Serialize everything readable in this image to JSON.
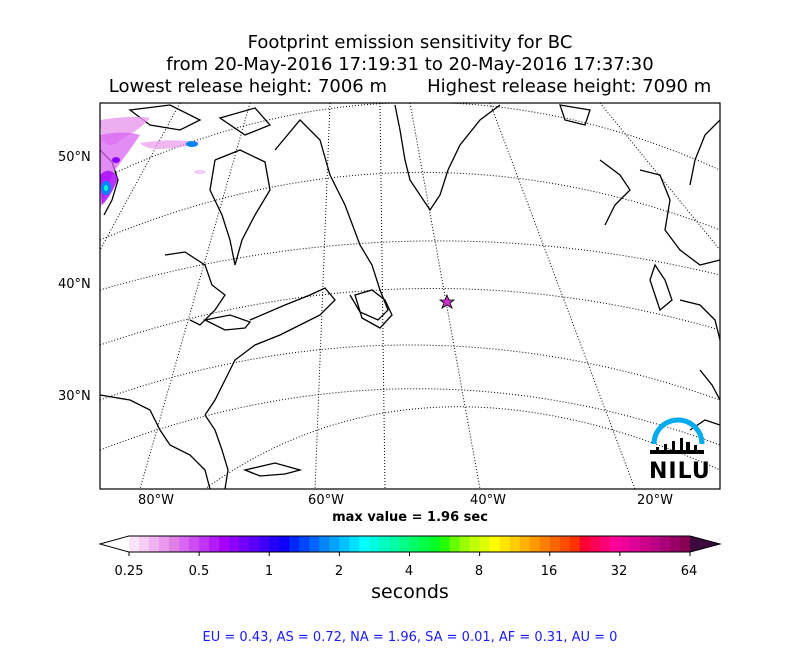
{
  "title": {
    "line1": "Footprint emission sensitivity for BC",
    "line2": "from 20-May-2016 17:19:31 to 20-May-2016 17:37:30",
    "line3": "Lowest release height: 7006 m       Highest release height: 7090 m"
  },
  "map": {
    "lat_labels": [
      "50°N",
      "40°N",
      "30°N"
    ],
    "lon_labels": [
      "80°W",
      "60°W",
      "40°W",
      "20°W"
    ],
    "marker_icon": "star-icon",
    "marker_color": "#cc33cc",
    "logo_text": "NILU",
    "logo_color": "#00aaee"
  },
  "max_value": "max value = 1.96 sec",
  "colorbar": {
    "tick_labels": [
      "0.25",
      "0.5",
      "1",
      "2",
      "4",
      "8",
      "16",
      "32",
      "64"
    ],
    "units": "seconds",
    "colors": [
      "#fce4fc",
      "#f7ccf7",
      "#f0b2f0",
      "#e999ee",
      "#e07fe6",
      "#d966f2",
      "#cc4cf2",
      "#bf33f2",
      "#b21aff",
      "#a600ff",
      "#8c00ff",
      "#7300ff",
      "#5900ff",
      "#3f00ff",
      "#2600ff",
      "#0d00ff",
      "#0026ff",
      "#0045ff",
      "#0066ff",
      "#0084ff",
      "#00a3ff",
      "#00c2ff",
      "#00e0ff",
      "#00ffff",
      "#00ffe0",
      "#00ffc2",
      "#00ffa3",
      "#00ff84",
      "#00ff66",
      "#00ff45",
      "#00ff26",
      "#26ff00",
      "#66ff00",
      "#99ff00",
      "#bfff00",
      "#ddff00",
      "#ffff00",
      "#ffe600",
      "#ffcc00",
      "#ffb300",
      "#ff9900",
      "#ff8000",
      "#ff6600",
      "#ff4d00",
      "#ff3300",
      "#ff0033",
      "#ff0055",
      "#ff0077",
      "#ff0099",
      "#ee0099",
      "#dd0099",
      "#cc0088",
      "#bb0088",
      "#aa0077",
      "#990066",
      "#880055"
    ]
  },
  "regional": "EU = 0.43,  AS = 0.72,  NA = 1.96,  SA = 0.01,  AF = 0.31,  AU = 0"
}
